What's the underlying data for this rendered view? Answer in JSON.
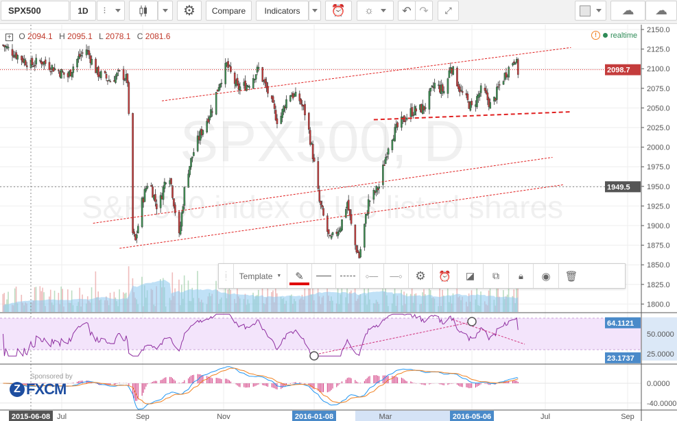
{
  "toolbar": {
    "symbol": "SPX500",
    "interval": "1D",
    "compare_label": "Compare",
    "indicators_label": "Indicators"
  },
  "legend": {
    "o_label": "O",
    "o": "2094.1",
    "h_label": "H",
    "h": "2095.1",
    "l_label": "L",
    "l": "2078.1",
    "c_label": "C",
    "c": "2081.6",
    "status": "realtime"
  },
  "watermark": {
    "title": "SPX500, D",
    "subtitle": "S&P 500 index of US listed shares"
  },
  "price_axis": {
    "ticks": [
      "2150.0",
      "2125.0",
      "2100.0",
      "2075.0",
      "2050.0",
      "2025.0",
      "2000.0",
      "1975.0",
      "1950.0",
      "1925.0",
      "1900.0",
      "1875.0",
      "1850.0",
      "1825.0",
      "1800.0"
    ],
    "last_price": "2098.7",
    "crosshair_price": "1949.5"
  },
  "rsi_axis": {
    "ticks": [
      "50.0000",
      "25.0000"
    ],
    "high_label": "64.1121",
    "low_label": "23.1737"
  },
  "macd_axis": {
    "ticks": [
      "0.0000",
      "-40.0000"
    ]
  },
  "time_axis": {
    "labels": [
      "Jul",
      "Sep",
      "Nov",
      "Mar",
      "Jul",
      "Sep"
    ],
    "highlight_labels": [
      "2015-06-08",
      "2016-01-08",
      "2016-05-06"
    ]
  },
  "drawing_toolbar": {
    "template_label": "Template"
  },
  "sponsor": {
    "text": "Sponsored by",
    "brand": "FXCM"
  },
  "colors": {
    "up": "#3f8f53",
    "down": "#c43c3c",
    "accent": "#4a8ac9",
    "rsi": "#8e2ea0",
    "macd": "#2196f3",
    "signal": "#f08020",
    "hist": "#d0307a",
    "trend": "#e02020"
  },
  "chart_data": {
    "type": "candlestick",
    "closes": [
      [
        "2015-05-18",
        2130
      ],
      [
        "2015-05-26",
        2120
      ],
      [
        "2015-06-08",
        2105
      ],
      [
        "2015-06-16",
        2110
      ],
      [
        "2015-06-26",
        2100
      ],
      [
        "2015-07-06",
        2090
      ],
      [
        "2015-07-12",
        2110
      ],
      [
        "2015-07-20",
        2125
      ],
      [
        "2015-07-28",
        2095
      ],
      [
        "2015-08-07",
        2085
      ],
      [
        "2015-08-15",
        2095
      ],
      [
        "2015-08-20",
        2085
      ],
      [
        "2015-08-24",
        1890
      ],
      [
        "2015-08-26",
        1880
      ],
      [
        "2015-08-31",
        1930
      ],
      [
        "2015-09-05",
        1960
      ],
      [
        "2015-09-12",
        1920
      ],
      [
        "2015-09-20",
        1975
      ],
      [
        "2015-09-28",
        1885
      ],
      [
        "2015-10-03",
        1960
      ],
      [
        "2015-10-10",
        2000
      ],
      [
        "2015-10-15",
        2020
      ],
      [
        "2015-10-23",
        2050
      ],
      [
        "2015-10-28",
        2080
      ],
      [
        "2015-11-03",
        2105
      ],
      [
        "2015-11-11",
        2075
      ],
      [
        "2015-11-19",
        2080
      ],
      [
        "2015-11-27",
        2100
      ],
      [
        "2015-12-04",
        2070
      ],
      [
        "2015-12-12",
        2030
      ],
      [
        "2015-12-20",
        2070
      ],
      [
        "2015-12-28",
        2060
      ],
      [
        "2016-01-02",
        2040
      ],
      [
        "2016-01-07",
        1990
      ],
      [
        "2016-01-12",
        1930
      ],
      [
        "2016-01-20",
        1880
      ],
      [
        "2016-01-28",
        1900
      ],
      [
        "2016-02-02",
        1930
      ],
      [
        "2016-02-07",
        1880
      ],
      [
        "2016-02-11",
        1860
      ],
      [
        "2016-02-18",
        1930
      ],
      [
        "2016-02-26",
        1950
      ],
      [
        "2016-03-05",
        2010
      ],
      [
        "2016-03-13",
        2030
      ],
      [
        "2016-03-21",
        2045
      ],
      [
        "2016-03-31",
        2050
      ],
      [
        "2016-04-08",
        2080
      ],
      [
        "2016-04-16",
        2070
      ],
      [
        "2016-04-20",
        2105
      ],
      [
        "2016-04-28",
        2070
      ],
      [
        "2016-05-06",
        2050
      ],
      [
        "2016-05-14",
        2075
      ],
      [
        "2016-05-21",
        2050
      ],
      [
        "2016-05-26",
        2075
      ],
      [
        "2016-06-01",
        2095
      ],
      [
        "2016-06-08",
        2115
      ],
      [
        "2016-06-10",
        2096
      ]
    ],
    "trendlines": [
      {
        "from": [
          "2015-09-15",
          2059
        ],
        "to": [
          "2016-07-20",
          2127
        ],
        "style": "thin"
      },
      {
        "from": [
          "2016-02-22",
          2035
        ],
        "to": [
          "2016-07-19",
          2045
        ],
        "style": "thick"
      },
      {
        "from": [
          "2015-07-25",
          1903
        ],
        "to": [
          "2016-07-06",
          1987
        ],
        "style": "thin"
      },
      {
        "from": [
          "2015-08-14",
          1871
        ],
        "to": [
          "2016-07-14",
          1952
        ],
        "style": "thin"
      }
    ],
    "ylim": [
      1800,
      2150
    ]
  }
}
